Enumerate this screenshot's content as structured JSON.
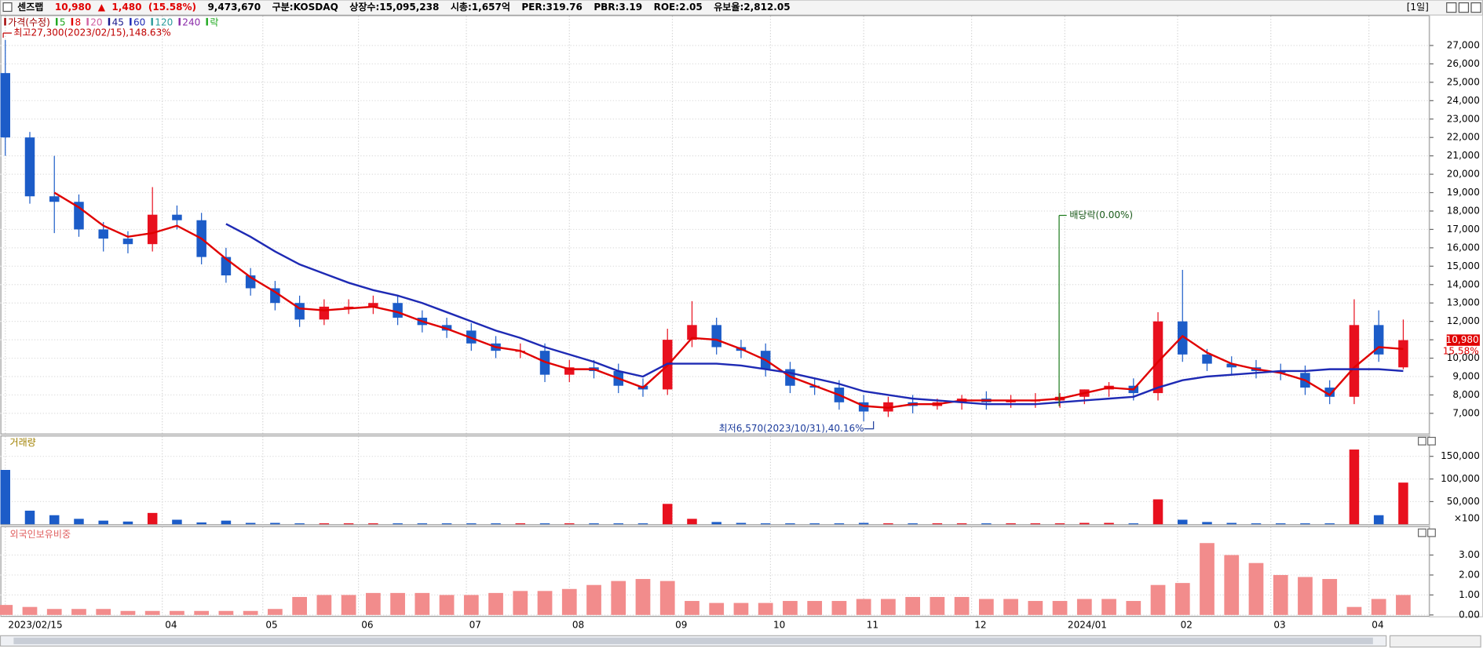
{
  "header": {
    "items": [
      {
        "text": "센즈랩",
        "color": "#000000"
      },
      {
        "text": "10,980",
        "color": "#e00000"
      },
      {
        "text": "▲",
        "color": "#e00000"
      },
      {
        "text": "1,480",
        "color": "#e00000"
      },
      {
        "text": "(15.58%)",
        "color": "#e00000"
      },
      {
        "text": "9,473,670",
        "color": "#000000"
      },
      {
        "text": "구분:KOSDAQ",
        "color": "#000000"
      },
      {
        "text": "상장수:15,095,238",
        "color": "#000000"
      },
      {
        "text": "시총:1,657억",
        "color": "#000000"
      },
      {
        "text": "PER:319.76",
        "color": "#000000"
      },
      {
        "text": "PBR:3.19",
        "color": "#000000"
      },
      {
        "text": "ROE:2.05",
        "color": "#000000"
      },
      {
        "text": "유보율:2,812.05",
        "color": "#000000"
      }
    ],
    "period": "[1일]"
  },
  "chart_data": [
    {
      "type": "candlestick",
      "up_color": "#e8101e",
      "down_color": "#1c5cc8",
      "series": [
        {
          "name": "가격(수정)",
          "color": "#a00000"
        },
        {
          "name": "5",
          "color": "#1fa81f"
        },
        {
          "name": "8",
          "color": "#e00000",
          "values": [
            null,
            null,
            19000,
            18200,
            17200,
            16600,
            16800,
            17200,
            16500,
            15400,
            14400,
            13600,
            12700,
            12600,
            12700,
            12800,
            12500,
            12000,
            11600,
            11100,
            10600,
            10400,
            9800,
            9400,
            9400,
            8900,
            8400,
            9600,
            11100,
            11000,
            10500,
            9900,
            9000,
            8500,
            8000,
            7400,
            7300,
            7500,
            7500,
            7700,
            7700,
            7700,
            7700,
            7800,
            8100,
            8400,
            8300,
            9800,
            11200,
            10300,
            9700,
            9400,
            9200,
            8800,
            8000,
            9500,
            10600,
            10500
          ]
        },
        {
          "name": "20",
          "color": "#d060a0"
        },
        {
          "name": "45",
          "color": "#1a1a8c"
        },
        {
          "name": "60",
          "color": "#1e2ab4",
          "values": [
            null,
            null,
            null,
            null,
            null,
            null,
            null,
            null,
            null,
            17300,
            16600,
            15800,
            15100,
            14600,
            14100,
            13700,
            13400,
            13000,
            12500,
            12000,
            11500,
            11100,
            10600,
            10200,
            9800,
            9300,
            9000,
            9700,
            9700,
            9700,
            9600,
            9400,
            9200,
            8900,
            8600,
            8200,
            8000,
            7800,
            7700,
            7600,
            7500,
            7500,
            7500,
            7600,
            7700,
            7800,
            7900,
            8400,
            8800,
            9000,
            9100,
            9200,
            9300,
            9300,
            9400,
            9400,
            9400,
            9300
          ]
        },
        {
          "name": "120",
          "color": "#2a9a9a"
        },
        {
          "name": "240",
          "color": "#8a2aa8"
        },
        {
          "name": "락",
          "color": "#1fa81f"
        }
      ],
      "x": [
        0,
        5,
        10,
        15,
        20,
        25,
        30,
        35,
        40,
        45,
        50,
        55,
        60,
        65,
        70,
        75,
        80,
        85,
        90,
        95,
        100,
        105,
        110,
        115,
        120,
        125,
        130,
        135,
        140,
        145,
        150,
        155,
        160,
        165,
        170,
        175,
        180,
        185,
        190,
        195,
        200,
        205,
        210,
        215,
        220,
        225,
        230,
        235,
        240,
        245,
        250,
        255,
        260,
        265,
        270,
        275,
        280,
        285
      ],
      "open": [
        25500,
        22000,
        18800,
        18500,
        17000,
        16500,
        16200,
        17800,
        17500,
        15500,
        14500,
        13800,
        13000,
        12100,
        12800,
        12800,
        13000,
        12200,
        11800,
        11500,
        10800,
        10400,
        10400,
        9100,
        9500,
        9300,
        8500,
        8300,
        11000,
        11800,
        10600,
        10400,
        9400,
        8500,
        8400,
        7600,
        7100,
        7600,
        7400,
        7600,
        7800,
        7600,
        7700,
        7700,
        7900,
        8300,
        8500,
        8100,
        12000,
        10200,
        9700,
        9500,
        9300,
        9200,
        8400,
        7900,
        11800,
        9500
      ],
      "high": [
        27300,
        22300,
        21000,
        18900,
        17400,
        16900,
        19300,
        18300,
        17900,
        16000,
        14900,
        14200,
        13400,
        13200,
        13200,
        13400,
        13400,
        12600,
        12200,
        11900,
        11200,
        10800,
        10800,
        9900,
        9900,
        9700,
        8900,
        11600,
        13100,
        12200,
        11000,
        10800,
        9800,
        8900,
        8800,
        8000,
        7900,
        8000,
        7800,
        8000,
        8200,
        8000,
        8100,
        8100,
        8300,
        8700,
        8900,
        12500,
        14800,
        10500,
        10100,
        9900,
        9700,
        9600,
        8800,
        13200,
        12600,
        12100
      ],
      "low": [
        21000,
        18400,
        16800,
        16600,
        15800,
        15700,
        15800,
        17000,
        15100,
        14100,
        13400,
        12600,
        11700,
        11800,
        12400,
        12400,
        11800,
        11400,
        11100,
        10400,
        10000,
        10000,
        8700,
        8700,
        8900,
        8100,
        7900,
        8000,
        10600,
        10200,
        10000,
        9000,
        8100,
        8000,
        7200,
        6570,
        6800,
        7000,
        7200,
        7200,
        7200,
        7300,
        7300,
        7300,
        7500,
        7900,
        7700,
        7700,
        9800,
        9300,
        9100,
        8900,
        8800,
        8000,
        7500,
        7500,
        9800,
        9400
      ],
      "close": [
        22000,
        18800,
        18500,
        17000,
        16500,
        16200,
        17800,
        17500,
        15500,
        14500,
        13800,
        13000,
        12100,
        12800,
        12800,
        13000,
        12200,
        11800,
        11500,
        10800,
        10400,
        10400,
        9100,
        9500,
        9300,
        8500,
        8300,
        11000,
        11800,
        10600,
        10400,
        9400,
        8500,
        8400,
        7600,
        7100,
        7600,
        7400,
        7600,
        7800,
        7600,
        7700,
        7700,
        7900,
        8300,
        8500,
        8100,
        12000,
        10200,
        9700,
        9500,
        9300,
        9200,
        8400,
        7900,
        11800,
        10200,
        10980
      ],
      "xlim": [
        -1,
        290
      ],
      "ylim": [
        5900,
        28600
      ],
      "yticks": [
        {
          "value": 7000,
          "label": "7,000"
        },
        {
          "value": 8000,
          "label": "8,000"
        },
        {
          "value": 9000,
          "label": "9,000"
        },
        {
          "value": 10000,
          "label": "10,000"
        },
        {
          "value": 11000,
          "label": "11,000"
        },
        {
          "value": 12000,
          "label": "12,000"
        },
        {
          "value": 13000,
          "label": "13,000"
        },
        {
          "value": 14000,
          "label": "14,000"
        },
        {
          "value": 15000,
          "label": "15,000"
        },
        {
          "value": 16000,
          "label": "16,000"
        },
        {
          "value": 17000,
          "label": "17,000"
        },
        {
          "value": 18000,
          "label": "18,000"
        },
        {
          "value": 19000,
          "label": "19,000"
        },
        {
          "value": 20000,
          "label": "20,000"
        },
        {
          "value": 21000,
          "label": "21,000"
        },
        {
          "value": 22000,
          "label": "22,000"
        },
        {
          "value": 23000,
          "label": "23,000"
        },
        {
          "value": 24000,
          "label": "24,000"
        },
        {
          "value": 25000,
          "label": "25,000"
        },
        {
          "value": 26000,
          "label": "26,000"
        },
        {
          "value": 27000,
          "label": "27,000"
        }
      ],
      "annotations": {
        "high": "최고27,300(2023/02/15),148.63%",
        "low": "최저6,570(2023/10/31),40.16%",
        "dividend": "배당락(0.00%)"
      },
      "price_tag": {
        "price": "10,980",
        "change": "15.58%"
      }
    },
    {
      "type": "volume",
      "title": "거래량",
      "unit": "×100",
      "x": [
        0,
        5,
        10,
        15,
        20,
        25,
        30,
        35,
        40,
        45,
        50,
        55,
        60,
        65,
        70,
        75,
        80,
        85,
        90,
        95,
        100,
        105,
        110,
        115,
        120,
        125,
        130,
        135,
        140,
        145,
        150,
        155,
        160,
        165,
        170,
        175,
        180,
        185,
        190,
        195,
        200,
        205,
        210,
        215,
        220,
        225,
        230,
        235,
        240,
        245,
        250,
        255,
        260,
        265,
        270,
        275,
        280,
        285
      ],
      "values": [
        120000,
        30000,
        20000,
        12000,
        8000,
        6000,
        25000,
        10000,
        4000,
        8000,
        3000,
        3000,
        2000,
        2000,
        2000,
        2000,
        2000,
        2000,
        2000,
        2000,
        2000,
        2000,
        2000,
        2000,
        2000,
        2000,
        2000,
        45000,
        12000,
        5000,
        3000,
        2000,
        2000,
        2000,
        2000,
        3000,
        2000,
        2000,
        2000,
        2000,
        2000,
        2000,
        2000,
        2000,
        3000,
        3000,
        2000,
        55000,
        10000,
        5000,
        3000,
        2000,
        2000,
        2000,
        2000,
        165000,
        20000,
        92000
      ],
      "xlim": [
        -1,
        290
      ],
      "ylim": [
        0,
        194000
      ],
      "yticks": [
        {
          "value": 50000,
          "label": "50,000"
        },
        {
          "value": 100000,
          "label": "100,000"
        },
        {
          "value": 150000,
          "label": "150,000"
        }
      ]
    },
    {
      "type": "bar",
      "title": "외국인보유비중",
      "color": "#f28c8c",
      "x": [
        0,
        5,
        10,
        15,
        20,
        25,
        30,
        35,
        40,
        45,
        50,
        55,
        60,
        65,
        70,
        75,
        80,
        85,
        90,
        95,
        100,
        105,
        110,
        115,
        120,
        125,
        130,
        135,
        140,
        145,
        150,
        155,
        160,
        165,
        170,
        175,
        180,
        185,
        190,
        195,
        200,
        205,
        210,
        215,
        220,
        225,
        230,
        235,
        240,
        245,
        250,
        255,
        260,
        265,
        270,
        275,
        280,
        285
      ],
      "values": [
        0.5,
        0.4,
        0.3,
        0.3,
        0.3,
        0.2,
        0.2,
        0.2,
        0.2,
        0.2,
        0.2,
        0.3,
        0.9,
        1.0,
        1.0,
        1.1,
        1.1,
        1.1,
        1.0,
        1.0,
        1.1,
        1.2,
        1.2,
        1.3,
        1.5,
        1.7,
        1.8,
        1.7,
        0.7,
        0.6,
        0.6,
        0.6,
        0.7,
        0.7,
        0.7,
        0.8,
        0.8,
        0.9,
        0.9,
        0.9,
        0.8,
        0.8,
        0.7,
        0.7,
        0.8,
        0.8,
        0.7,
        1.5,
        1.6,
        3.6,
        3.0,
        2.6,
        2.0,
        1.9,
        1.8,
        0.4,
        0.8,
        1.0
      ],
      "xlim": [
        -1,
        290
      ],
      "ylim": [
        0,
        4.4
      ],
      "yticks": [
        {
          "value": 0,
          "label": "0.00"
        },
        {
          "value": 1,
          "label": "1.00"
        },
        {
          "value": 2,
          "label": "2.00"
        },
        {
          "value": 3,
          "label": "3.00"
        }
      ],
      "xticks": [
        {
          "value": 0,
          "label": "2023/02/15"
        },
        {
          "value": 32,
          "label": "04"
        },
        {
          "value": 52.5,
          "label": "05"
        },
        {
          "value": 72,
          "label": "06"
        },
        {
          "value": 94,
          "label": "07"
        },
        {
          "value": 115,
          "label": "08"
        },
        {
          "value": 136,
          "label": "09"
        },
        {
          "value": 156,
          "label": "10"
        },
        {
          "value": 175,
          "label": "11"
        },
        {
          "value": 197,
          "label": "12"
        },
        {
          "value": 216,
          "label": "2024/01"
        },
        {
          "value": 239,
          "label": "02"
        },
        {
          "value": 258,
          "label": "03"
        },
        {
          "value": 278,
          "label": "04"
        }
      ]
    }
  ]
}
